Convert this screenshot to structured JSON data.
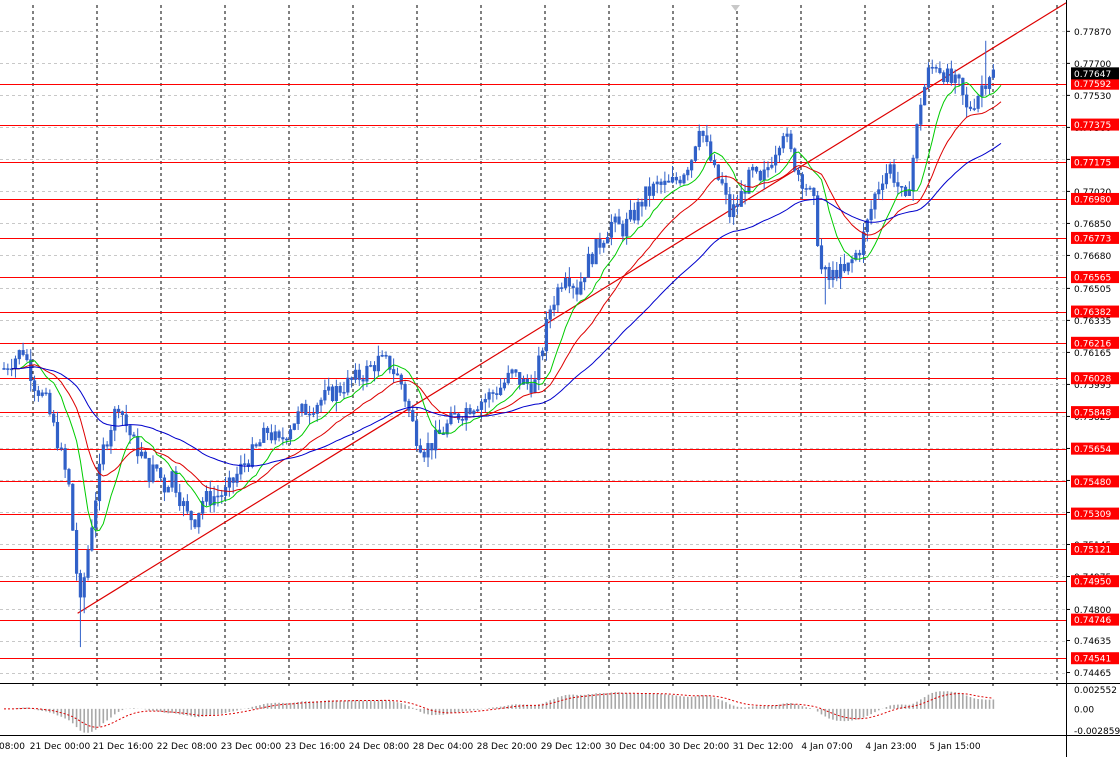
{
  "chart_data": {
    "type": "candlestick",
    "instrument_note": "",
    "price_axis": {
      "range": [
        0.7442,
        0.7801
      ],
      "tick_labels": [
        "0.77870",
        "0.77700",
        "0.77530",
        "0.77360",
        "0.77190",
        "0.77020",
        "0.76850",
        "0.76680",
        "0.76505",
        "0.76335",
        "0.76165",
        "0.75995",
        "0.75825",
        "0.75655",
        "0.75485",
        "0.75315",
        "0.75145",
        "0.74975",
        "0.74800",
        "0.74635",
        "0.74465"
      ],
      "tick_values": [
        0.7787,
        0.777,
        0.7753,
        0.7736,
        0.7719,
        0.7702,
        0.7685,
        0.7668,
        0.76505,
        0.76335,
        0.76165,
        0.75995,
        0.75825,
        0.75655,
        0.75485,
        0.75315,
        0.75145,
        0.74975,
        0.748,
        0.74635,
        0.74465
      ]
    },
    "time_axis": {
      "labels": [
        "08:00",
        "21 Dec 00:00",
        "21 Dec 16:00",
        "22 Dec 08:00",
        "23 Dec 00:00",
        "23 Dec 16:00",
        "24 Dec 08:00",
        "28 Dec 04:00",
        "28 Dec 20:00",
        "29 Dec 12:00",
        "30 Dec 04:00",
        "30 Dec 20:00",
        "31 Dec 12:00",
        "4 Jan 07:00",
        "4 Jan 23:00",
        "5 Jan 15:00"
      ]
    },
    "current_price": "0.77647",
    "levels": [
      {
        "label": "0.77592",
        "value": 0.77592
      },
      {
        "label": "0.77375",
        "value": 0.77375
      },
      {
        "label": "0.77175",
        "value": 0.77175
      },
      {
        "label": "0.76980",
        "value": 0.7698
      },
      {
        "label": "0.76773",
        "value": 0.76773
      },
      {
        "label": "0.76565",
        "value": 0.76565
      },
      {
        "label": "0.76382",
        "value": 0.76382
      },
      {
        "label": "0.76216",
        "value": 0.76216
      },
      {
        "label": "0.76028",
        "value": 0.76028
      },
      {
        "label": "0.75848",
        "value": 0.75848
      },
      {
        "label": "0.75654",
        "value": 0.75654
      },
      {
        "label": "0.75480",
        "value": 0.7548
      },
      {
        "label": "0.75309",
        "value": 0.75309
      },
      {
        "label": "0.75121",
        "value": 0.75121
      },
      {
        "label": "0.74950",
        "value": 0.7495
      },
      {
        "label": "0.74746",
        "value": 0.74746
      },
      {
        "label": "0.74541",
        "value": 0.74541
      }
    ],
    "trendline": {
      "start": {
        "bar": 2,
        "price": 0.7478
      },
      "end": {
        "bar": 180,
        "price": 0.7701
      }
    },
    "anchors": [
      [
        0,
        0.7608
      ],
      [
        5,
        0.7618
      ],
      [
        8,
        0.76
      ],
      [
        11,
        0.759
      ],
      [
        14,
        0.757
      ],
      [
        17,
        0.7545
      ],
      [
        19,
        0.75
      ],
      [
        20,
        0.7482
      ],
      [
        22,
        0.7512
      ],
      [
        24,
        0.754
      ],
      [
        26,
        0.7565
      ],
      [
        28,
        0.7578
      ],
      [
        30,
        0.759
      ],
      [
        32,
        0.7578
      ],
      [
        34,
        0.7568
      ],
      [
        36,
        0.7562
      ],
      [
        38,
        0.7552
      ],
      [
        40,
        0.7555
      ],
      [
        42,
        0.7545
      ],
      [
        44,
        0.7552
      ],
      [
        46,
        0.754
      ],
      [
        48,
        0.753
      ],
      [
        50,
        0.7528
      ],
      [
        52,
        0.7538
      ],
      [
        55,
        0.754
      ],
      [
        58,
        0.7542
      ],
      [
        60,
        0.7548
      ],
      [
        63,
        0.7558
      ],
      [
        66,
        0.7565
      ],
      [
        69,
        0.7575
      ],
      [
        72,
        0.7568
      ],
      [
        75,
        0.7578
      ],
      [
        78,
        0.7585
      ],
      [
        82,
        0.759
      ],
      [
        86,
        0.7595
      ],
      [
        90,
        0.76
      ],
      [
        94,
        0.7605
      ],
      [
        98,
        0.7612
      ],
      [
        101,
        0.761
      ],
      [
        104,
        0.76
      ],
      [
        106,
        0.7585
      ],
      [
        108,
        0.7572
      ],
      [
        110,
        0.7565
      ],
      [
        112,
        0.7568
      ],
      [
        115,
        0.7575
      ],
      [
        118,
        0.7582
      ],
      [
        122,
        0.7588
      ],
      [
        126,
        0.7592
      ],
      [
        130,
        0.7598
      ],
      [
        133,
        0.7605
      ],
      [
        136,
        0.76
      ],
      [
        139,
        0.76
      ],
      [
        141,
        0.762
      ],
      [
        143,
        0.764
      ],
      [
        145,
        0.765
      ],
      [
        147,
        0.766
      ],
      [
        150,
        0.765
      ],
      [
        153,
        0.7665
      ],
      [
        156,
        0.7675
      ],
      [
        159,
        0.7685
      ],
      [
        162,
        0.7682
      ],
      [
        165,
        0.769
      ],
      [
        168,
        0.77
      ],
      [
        171,
        0.7705
      ],
      [
        174,
        0.7705
      ],
      [
        177,
        0.771
      ],
      [
        180,
        0.772
      ],
      [
        182,
        0.7738
      ],
      [
        184,
        0.7725
      ],
      [
        186,
        0.7712
      ],
      [
        188,
        0.7705
      ],
      [
        190,
        0.769
      ],
      [
        192,
        0.7695
      ],
      [
        194,
        0.7705
      ],
      [
        196,
        0.7712
      ],
      [
        198,
        0.7705
      ],
      [
        200,
        0.7715
      ],
      [
        202,
        0.7725
      ],
      [
        204,
        0.7735
      ],
      [
        206,
        0.7722
      ],
      [
        208,
        0.7712
      ],
      [
        210,
        0.7705
      ],
      [
        212,
        0.7695
      ],
      [
        214,
        0.766
      ],
      [
        216,
        0.7655
      ],
      [
        218,
        0.766
      ],
      [
        220,
        0.7658
      ],
      [
        222,
        0.7665
      ],
      [
        224,
        0.7672
      ],
      [
        226,
        0.7685
      ],
      [
        228,
        0.77
      ],
      [
        230,
        0.771
      ],
      [
        232,
        0.7715
      ],
      [
        234,
        0.7705
      ],
      [
        236,
        0.7695
      ],
      [
        238,
        0.772
      ],
      [
        240,
        0.775
      ],
      [
        242,
        0.7765
      ],
      [
        244,
        0.777
      ],
      [
        246,
        0.7765
      ],
      [
        248,
        0.776
      ],
      [
        250,
        0.7758
      ],
      [
        252,
        0.7745
      ],
      [
        254,
        0.775
      ],
      [
        256,
        0.7758
      ],
      [
        258,
        0.7765
      ]
    ],
    "moving_averages": [
      {
        "color": "#00cc00",
        "period": 8
      },
      {
        "color": "#dd0000",
        "period": 21
      },
      {
        "color": "#0000cc",
        "period": 55
      }
    ],
    "oscillator": {
      "range": [
        -0.0033,
        0.003
      ],
      "tick_labels": [
        "0.002552",
        "0.00",
        "-0.002859"
      ],
      "tick_values": [
        0.002552,
        0,
        -0.002859
      ],
      "signal_color": "#dd0000",
      "histogram_color": "#a8a8a8"
    },
    "colors": {
      "candle": "#3060c8",
      "level": "#ff0000",
      "trend": "#dd0000",
      "grid": "#000000",
      "price_tag_bg": "#000000",
      "price_tag_text": "#ffffff"
    }
  }
}
